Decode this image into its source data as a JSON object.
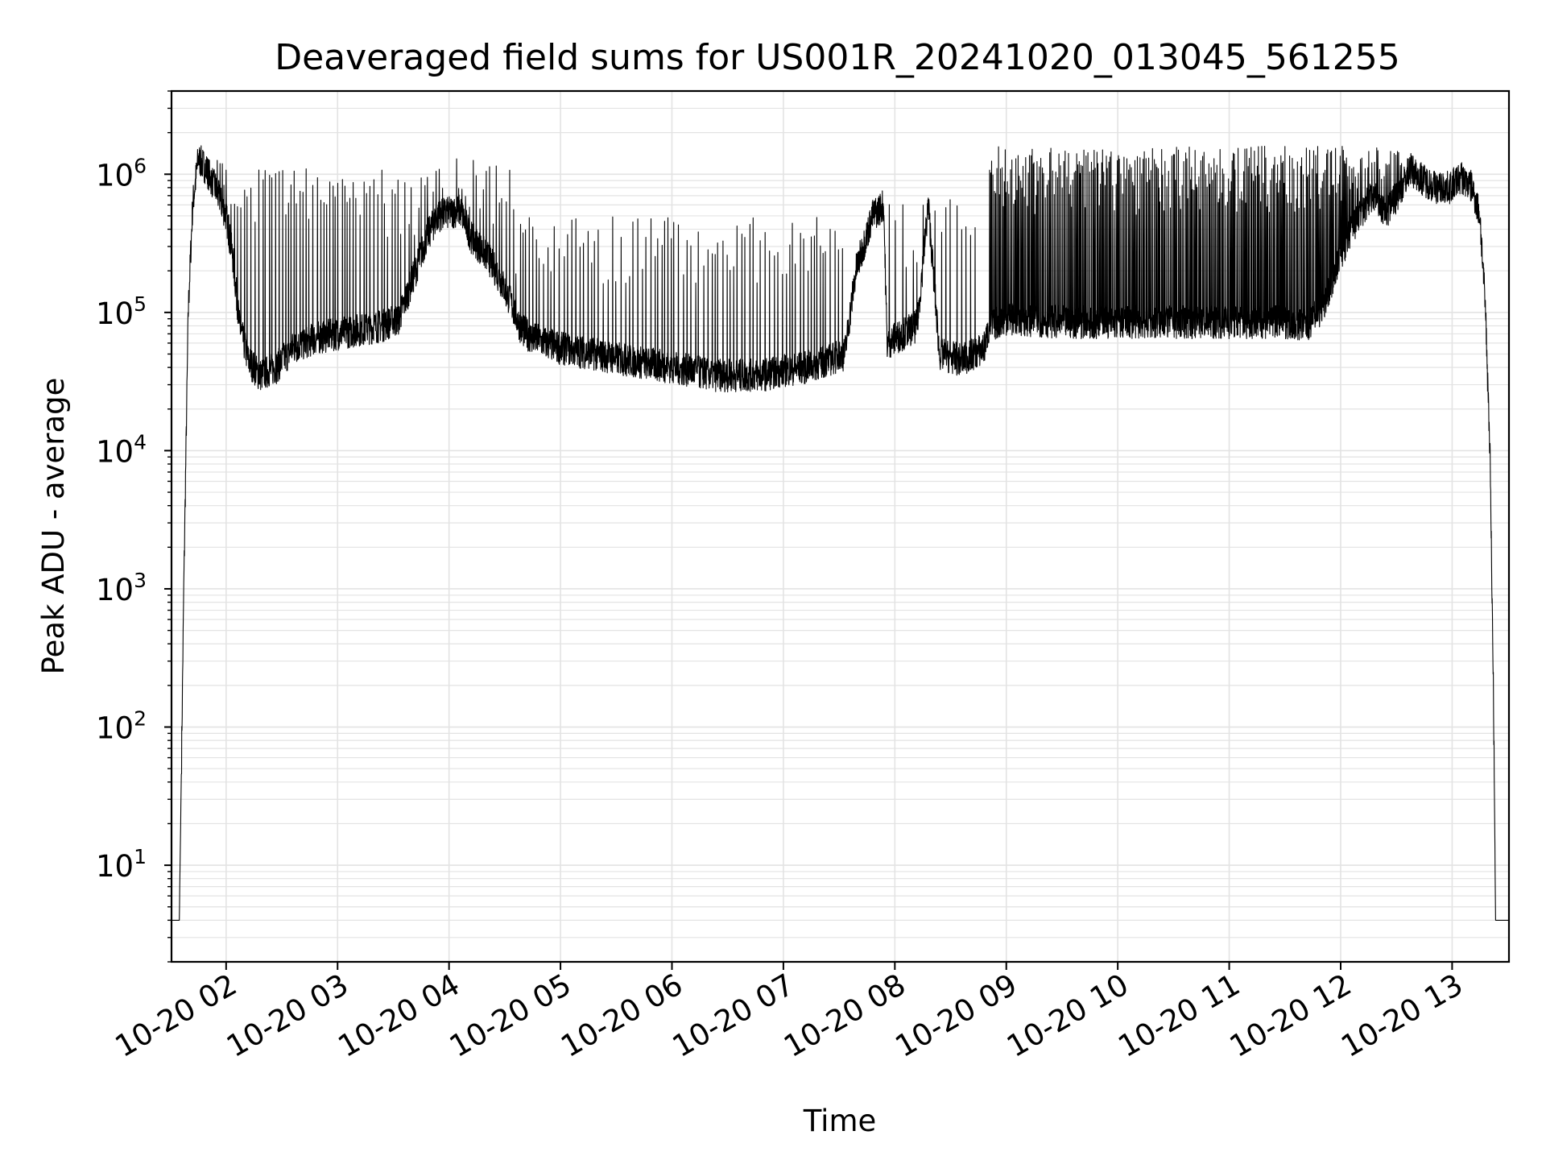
{
  "chart_data": {
    "type": "line",
    "title": "Deaveraged field sums for US001R_20241020_013045_561255",
    "xlabel": "Time",
    "ylabel": "Peak ADU - average",
    "y_scale": "log",
    "x_unit": "hours",
    "xlim": [
      1.51,
      13.51
    ],
    "ylim": [
      2,
      4000000
    ],
    "grid": true,
    "line_color": "#000000",
    "grid_color": "#e3e3e3",
    "x_ticks": [
      {
        "value": 2,
        "label": "10-20 02"
      },
      {
        "value": 3,
        "label": "10-20 03"
      },
      {
        "value": 4,
        "label": "10-20 04"
      },
      {
        "value": 5,
        "label": "10-20 05"
      },
      {
        "value": 6,
        "label": "10-20 06"
      },
      {
        "value": 7,
        "label": "10-20 07"
      },
      {
        "value": 8,
        "label": "10-20 08"
      },
      {
        "value": 9,
        "label": "10-20 09"
      },
      {
        "value": 10,
        "label": "10-20 10"
      },
      {
        "value": 11,
        "label": "10-20 11"
      },
      {
        "value": 12,
        "label": "10-20 12"
      },
      {
        "value": 13,
        "label": "10-20 13"
      }
    ],
    "y_ticks": [
      {
        "value": 10,
        "base": "10",
        "exp": "1"
      },
      {
        "value": 100,
        "base": "10",
        "exp": "2"
      },
      {
        "value": 1000,
        "base": "10",
        "exp": "3"
      },
      {
        "value": 10000,
        "base": "10",
        "exp": "4"
      },
      {
        "value": 100000,
        "base": "10",
        "exp": "5"
      },
      {
        "value": 1000000,
        "base": "10",
        "exp": "6"
      }
    ],
    "series": [
      {
        "baseline": [
          [
            1.51,
            4
          ],
          [
            1.58,
            4
          ],
          [
            1.595,
            30
          ],
          [
            1.62,
            1000
          ],
          [
            1.66,
            100000
          ],
          [
            1.7,
            600000
          ],
          [
            1.75,
            1300000
          ],
          [
            1.82,
            1100000
          ],
          [
            1.9,
            800000
          ],
          [
            2.0,
            500000
          ],
          [
            2.06,
            250000
          ],
          [
            2.12,
            80000
          ],
          [
            2.2,
            45000
          ],
          [
            2.3,
            35000
          ],
          [
            2.45,
            40000
          ],
          [
            2.6,
            55000
          ],
          [
            2.8,
            65000
          ],
          [
            3.0,
            70000
          ],
          [
            3.2,
            75000
          ],
          [
            3.4,
            80000
          ],
          [
            3.55,
            90000
          ],
          [
            3.7,
            200000
          ],
          [
            3.8,
            350000
          ],
          [
            3.9,
            500000
          ],
          [
            4.1,
            550000
          ],
          [
            4.2,
            350000
          ],
          [
            4.35,
            250000
          ],
          [
            4.45,
            180000
          ],
          [
            4.55,
            120000
          ],
          [
            4.65,
            75000
          ],
          [
            4.75,
            65000
          ],
          [
            5.0,
            55000
          ],
          [
            5.3,
            50000
          ],
          [
            5.6,
            45000
          ],
          [
            6.0,
            40000
          ],
          [
            6.4,
            35000
          ],
          [
            6.8,
            35000
          ],
          [
            7.0,
            38000
          ],
          [
            7.2,
            40000
          ],
          [
            7.4,
            45000
          ],
          [
            7.55,
            50000
          ],
          [
            7.65,
            200000
          ],
          [
            7.8,
            500000
          ],
          [
            7.9,
            600000
          ],
          [
            7.93,
            60000
          ],
          [
            8.2,
            80000
          ],
          [
            8.3,
            600000
          ],
          [
            8.4,
            50000
          ],
          [
            8.6,
            45000
          ],
          [
            8.8,
            55000
          ],
          [
            8.85,
            80000
          ],
          [
            9.0,
            90000
          ],
          [
            9.5,
            85000
          ],
          [
            10.0,
            85000
          ],
          [
            10.5,
            85000
          ],
          [
            11.0,
            85000
          ],
          [
            11.5,
            85000
          ],
          [
            11.7,
            80000
          ],
          [
            11.85,
            110000
          ],
          [
            11.95,
            200000
          ],
          [
            12.1,
            400000
          ],
          [
            12.3,
            700000
          ],
          [
            12.4,
            500000
          ],
          [
            12.55,
            800000
          ],
          [
            12.62,
            1100000
          ],
          [
            12.75,
            900000
          ],
          [
            12.86,
            800000
          ],
          [
            12.98,
            800000
          ],
          [
            13.08,
            950000
          ],
          [
            13.18,
            800000
          ],
          [
            13.25,
            500000
          ],
          [
            13.3,
            100000
          ],
          [
            13.34,
            10000
          ],
          [
            13.37,
            200
          ],
          [
            13.38,
            30
          ],
          [
            13.39,
            4
          ],
          [
            13.51,
            4
          ]
        ],
        "noise_decades": 0.12,
        "spike_segments": [
          {
            "x": [
              1.75,
              2.0
            ],
            "interval": 0.02,
            "peak": 1200000
          },
          {
            "x": [
              2.0,
              3.75
            ],
            "interval": 0.03,
            "peak": 1000000
          },
          {
            "x": [
              3.75,
              4.6
            ],
            "interval": 0.03,
            "peak": 1200000
          },
          {
            "x": [
              4.6,
              7.55
            ],
            "interval": 0.035,
            "peak": 450000
          },
          {
            "x": [
              7.95,
              8.75
            ],
            "interval": 0.05,
            "peak": 600000
          },
          {
            "x": [
              8.85,
              12.55
            ],
            "interval": 0.012,
            "peak": 1450000
          }
        ]
      }
    ]
  }
}
